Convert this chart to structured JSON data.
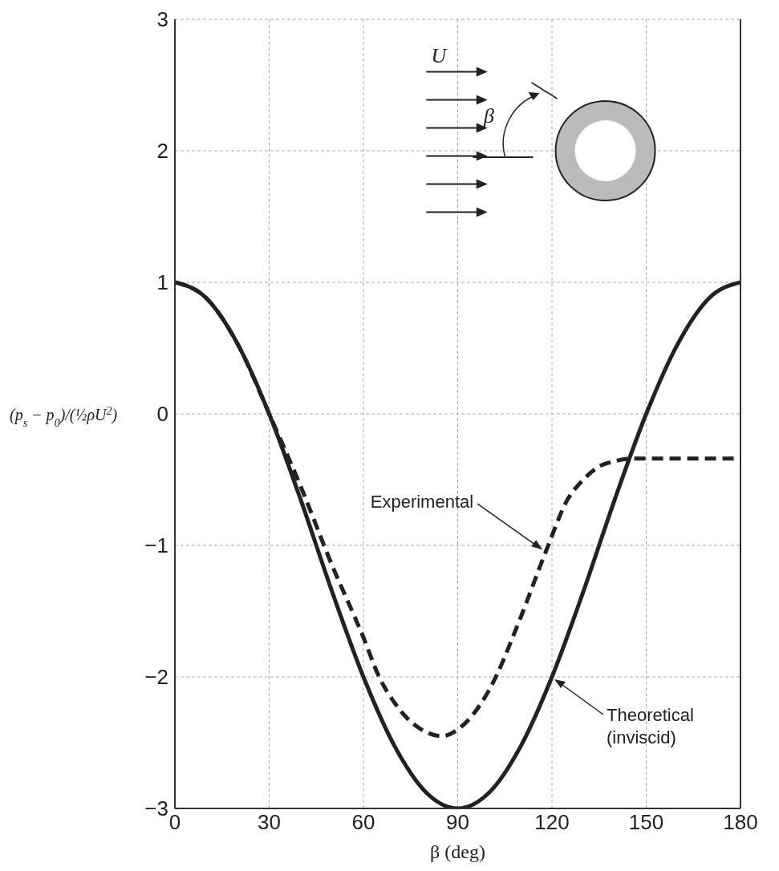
{
  "chart_data": {
    "type": "line",
    "xlabel": "β (deg)",
    "ylabel": "(p$_{s}$ − p$_{0}$)/(½ρU$^{2}$)",
    "xlim": [
      0,
      180
    ],
    "xticks": [
      0,
      30,
      60,
      90,
      120,
      150,
      180
    ],
    "ylim": [
      -3,
      3
    ],
    "yticks": [
      -3,
      -2,
      -1,
      0,
      1,
      2,
      3
    ],
    "grid": true,
    "legend": false,
    "marker": "none",
    "series": [
      {
        "color": "#222222",
        "line_style": "solid",
        "x": [
          0,
          10,
          20,
          30,
          40,
          50,
          60,
          70,
          80,
          90,
          100,
          110,
          120,
          130,
          140,
          150,
          160,
          170,
          180
        ],
        "values": [
          1,
          0.88,
          0.53,
          0,
          -0.65,
          -1.35,
          -2,
          -2.53,
          -2.88,
          -3,
          -2.88,
          -2.53,
          -2,
          -1.35,
          -0.65,
          0,
          0.53,
          0.88,
          1
        ]
      },
      {
        "color": "#222222",
        "line_style": "dashed",
        "x": [
          0,
          10,
          20,
          30,
          40,
          50,
          60,
          65,
          70,
          80,
          85,
          90,
          100,
          110,
          118,
          125,
          130,
          135,
          140,
          145,
          180
        ],
        "values": [
          1,
          0.88,
          0.53,
          0,
          -0.55,
          -1.15,
          -1.7,
          -2,
          -2.2,
          -2.42,
          -2.45,
          -2.4,
          -2.1,
          -1.55,
          -1.05,
          -0.65,
          -0.5,
          -0.4,
          -0.36,
          -0.34,
          -0.34
        ]
      }
    ],
    "annotations": [
      {
        "text": "Experimental",
        "x": 118,
        "y": -1.05
      },
      {
        "text": "Theoretical\n(inviscid)",
        "x": 120,
        "y": -2
      },
      "U",
      "β"
    ]
  }
}
